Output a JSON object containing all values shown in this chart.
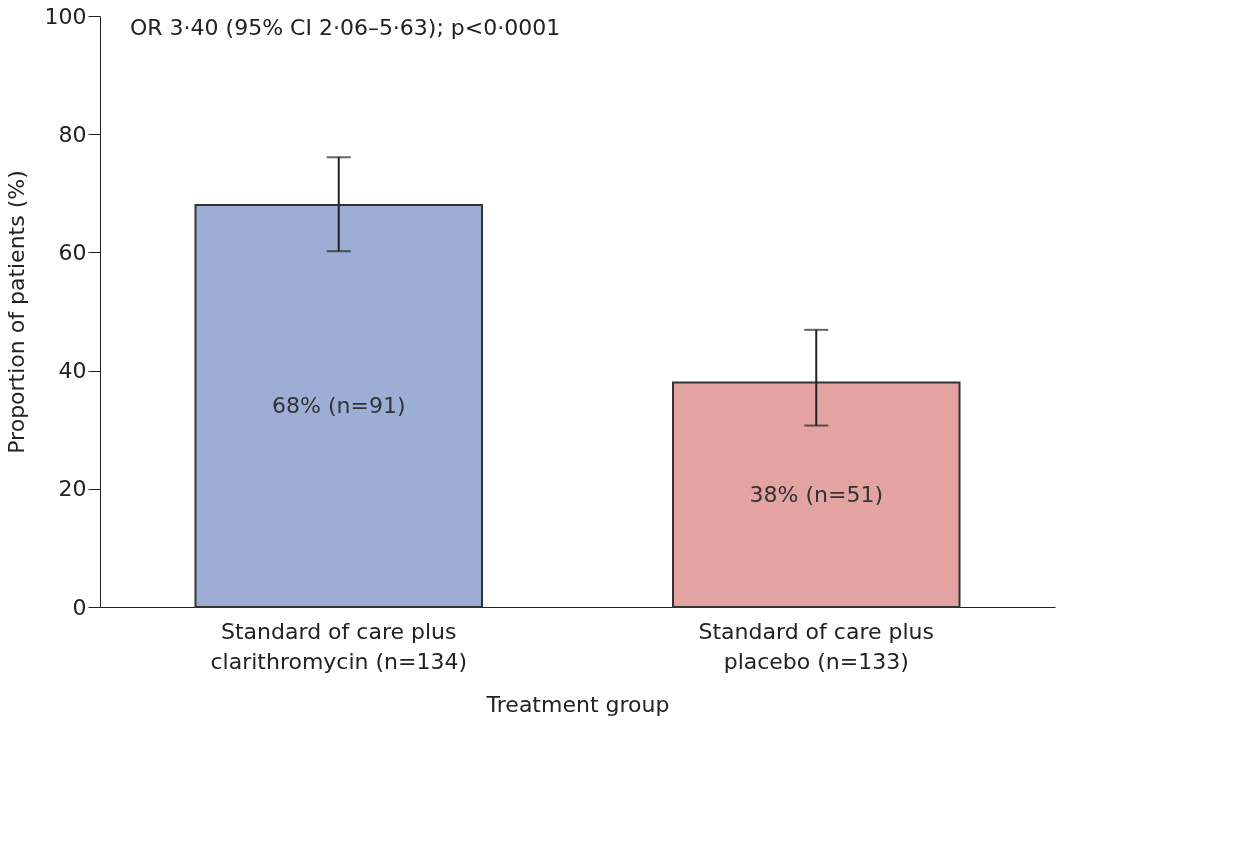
{
  "chart_data": {
    "type": "bar",
    "xlabel": "Treatment group",
    "ylabel": "Proportion of patients (%)",
    "annotations": [
      "OR 3·40 (95% CI 2·06–5·63); p<0·0001"
    ],
    "categories": [
      "Standard of care plus clarithromycin (n=134)",
      "Standard of care plus placebo (n=133)"
    ],
    "values": [
      68,
      38
    ],
    "colors": [
      "#9daed6",
      "#e3a3a1"
    ],
    "errors": [
      [
        60.2,
        76.1
      ],
      [
        30.7,
        46.9
      ]
    ],
    "value_labels": [
      "68% (n=91)",
      "38% (n=51)"
    ],
    "ylim": [
      0,
      100
    ],
    "yticks": [
      0,
      20,
      40,
      60,
      80,
      100
    ],
    "grid": false,
    "legend": false
  }
}
